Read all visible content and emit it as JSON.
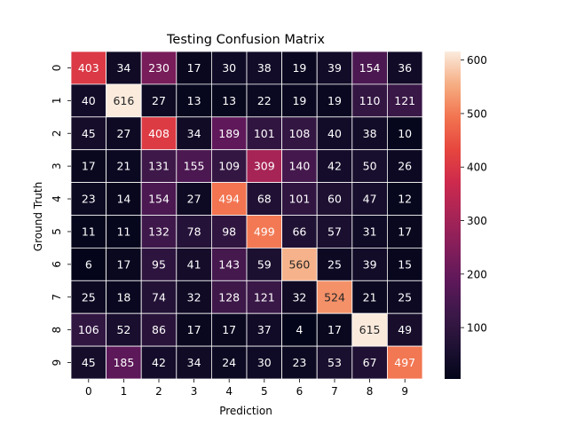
{
  "chart_data": {
    "type": "heatmap",
    "title": "Testing Confusion Matrix",
    "xlabel": "Prediction",
    "ylabel": "Ground Truth",
    "x_categories": [
      "0",
      "1",
      "2",
      "3",
      "4",
      "5",
      "6",
      "7",
      "8",
      "9"
    ],
    "y_categories": [
      "0",
      "1",
      "2",
      "3",
      "4",
      "5",
      "6",
      "7",
      "8",
      "9"
    ],
    "values": [
      [
        403,
        34,
        230,
        17,
        30,
        38,
        19,
        39,
        154,
        36
      ],
      [
        40,
        616,
        27,
        13,
        13,
        22,
        19,
        19,
        110,
        121
      ],
      [
        45,
        27,
        408,
        34,
        189,
        101,
        108,
        40,
        38,
        10
      ],
      [
        17,
        21,
        131,
        155,
        109,
        309,
        140,
        42,
        50,
        26
      ],
      [
        23,
        14,
        154,
        27,
        494,
        68,
        101,
        60,
        47,
        12
      ],
      [
        11,
        11,
        132,
        78,
        98,
        499,
        66,
        57,
        31,
        17
      ],
      [
        6,
        17,
        95,
        41,
        143,
        59,
        560,
        25,
        39,
        15
      ],
      [
        25,
        18,
        74,
        32,
        128,
        121,
        32,
        524,
        21,
        25
      ],
      [
        106,
        52,
        86,
        17,
        17,
        37,
        4,
        17,
        615,
        49
      ],
      [
        45,
        185,
        42,
        34,
        24,
        30,
        23,
        53,
        67,
        497
      ]
    ],
    "colormap": "rocket",
    "vmin": 4,
    "vmax": 616,
    "colorbar_ticks": [
      100,
      200,
      300,
      400,
      500,
      600
    ],
    "annotations": true,
    "grid": false
  }
}
